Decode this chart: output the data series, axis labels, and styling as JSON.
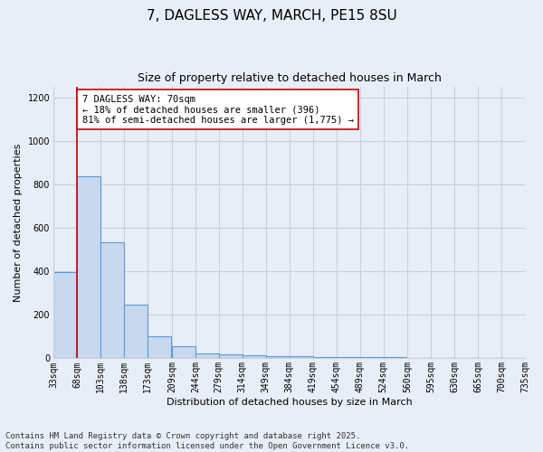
{
  "title_line1": "7, DAGLESS WAY, MARCH, PE15 8SU",
  "title_line2": "Size of property relative to detached houses in March",
  "xlabel": "Distribution of detached houses by size in March",
  "ylabel": "Number of detached properties",
  "bar_values": [
    396,
    838,
    534,
    248,
    101,
    57,
    22,
    18,
    13,
    10,
    8,
    6,
    5,
    4,
    4,
    3,
    3,
    2,
    2,
    2
  ],
  "bin_edges": [
    33,
    68,
    103,
    138,
    173,
    209,
    244,
    279,
    314,
    349,
    384,
    419,
    454,
    489,
    524,
    560,
    595,
    630,
    665,
    700,
    735
  ],
  "x_labels": [
    "33sqm",
    "68sqm",
    "103sqm",
    "138sqm",
    "173sqm",
    "209sqm",
    "244sqm",
    "279sqm",
    "314sqm",
    "349sqm",
    "384sqm",
    "419sqm",
    "454sqm",
    "489sqm",
    "524sqm",
    "560sqm",
    "595sqm",
    "630sqm",
    "665sqm",
    "700sqm",
    "735sqm"
  ],
  "bar_color": "#c8d8ee",
  "bar_edge_color": "#5b9bd5",
  "background_color": "#e8eef8",
  "grid_color": "#c8d0dc",
  "ylim": [
    0,
    1250
  ],
  "yticks": [
    0,
    200,
    400,
    600,
    800,
    1000,
    1200
  ],
  "vline_x": 68,
  "vline_color": "#cc0000",
  "annotation_text": "7 DAGLESS WAY: 70sqm\n← 18% of detached houses are smaller (396)\n81% of semi-detached houses are larger (1,775) →",
  "annotation_box_color": "#ffffff",
  "annotation_box_edge_color": "#cc0000",
  "footer_line1": "Contains HM Land Registry data © Crown copyright and database right 2025.",
  "footer_line2": "Contains public sector information licensed under the Open Government Licence v3.0.",
  "title_fontsize": 11,
  "subtitle_fontsize": 9,
  "axis_label_fontsize": 8,
  "tick_fontsize": 7,
  "annotation_fontsize": 7.5,
  "footer_fontsize": 6.5
}
